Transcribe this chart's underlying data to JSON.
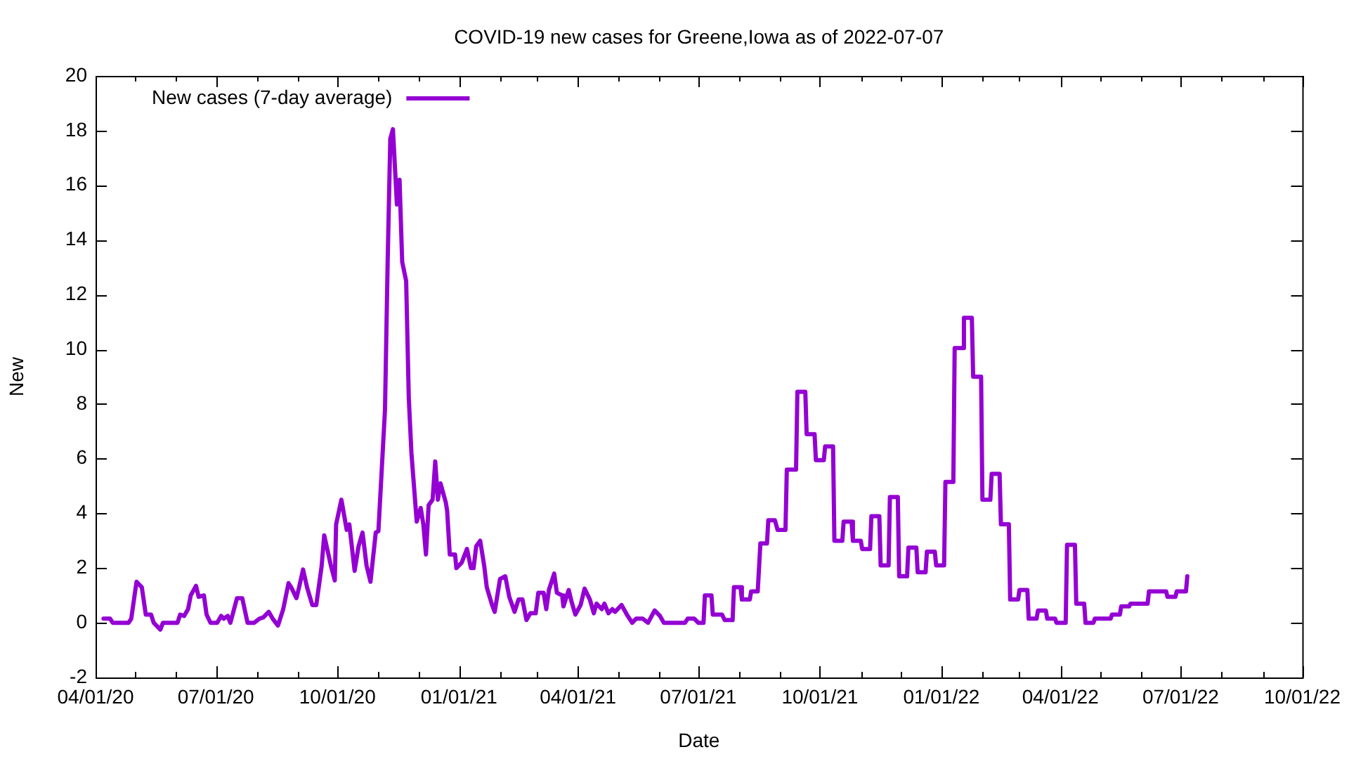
{
  "chart_data": {
    "type": "line",
    "title": "COVID-19 new cases for Greene,Iowa as of 2022-07-07",
    "xlabel": "Date",
    "ylabel": "New",
    "series": [
      {
        "name": "New cases (7-day average)",
        "color": "#9400d3",
        "x": [
          "2020-04-07",
          "2020-04-12",
          "2020-04-14",
          "2020-04-26",
          "2020-04-28",
          "2020-05-02",
          "2020-05-06",
          "2020-05-09",
          "2020-05-13",
          "2020-05-15",
          "2020-05-20",
          "2020-05-22",
          "2020-06-02",
          "2020-06-04",
          "2020-06-07",
          "2020-06-10",
          "2020-06-12",
          "2020-06-16",
          "2020-06-18",
          "2020-06-22",
          "2020-06-24",
          "2020-06-27",
          "2020-07-02",
          "2020-07-05",
          "2020-07-07",
          "2020-07-10",
          "2020-07-12",
          "2020-07-17",
          "2020-07-21",
          "2020-07-25",
          "2020-07-30",
          "2020-08-03",
          "2020-08-06",
          "2020-08-10",
          "2020-08-13",
          "2020-08-17",
          "2020-08-21",
          "2020-08-25",
          "2020-08-27",
          "2020-08-31",
          "2020-09-02",
          "2020-09-05",
          "2020-09-08",
          "2020-09-12",
          "2020-09-15",
          "2020-09-19",
          "2020-09-21",
          "2020-09-26",
          "2020-09-29",
          "2020-09-30",
          "2020-10-04",
          "2020-10-08",
          "2020-10-10",
          "2020-10-14",
          "2020-10-17",
          "2020-10-20",
          "2020-10-23",
          "2020-10-26",
          "2020-10-30",
          "2020-11-01",
          "2020-11-06",
          "2020-11-08",
          "2020-11-10",
          "2020-11-12",
          "2020-11-15",
          "2020-11-17",
          "2020-11-19",
          "2020-11-22",
          "2020-11-24",
          "2020-11-26",
          "2020-11-30",
          "2020-12-03",
          "2020-12-05",
          "2020-12-07",
          "2020-12-09",
          "2020-12-12",
          "2020-12-14",
          "2020-12-16",
          "2020-12-18",
          "2020-12-22",
          "2020-12-23",
          "2020-12-25",
          "2020-12-29",
          "2020-12-30",
          "2021-01-03",
          "2021-01-07",
          "2021-01-10",
          "2021-01-12",
          "2021-01-14",
          "2021-01-17",
          "2021-01-20",
          "2021-01-22",
          "2021-01-26",
          "2021-01-28",
          "2021-02-01",
          "2021-02-05",
          "2021-02-08",
          "2021-02-12",
          "2021-02-15",
          "2021-02-18",
          "2021-02-21",
          "2021-02-24",
          "2021-02-28",
          "2021-03-02",
          "2021-03-06",
          "2021-03-08",
          "2021-03-10",
          "2021-03-14",
          "2021-03-16",
          "2021-03-20",
          "2021-03-21",
          "2021-03-25",
          "2021-03-27",
          "2021-03-30",
          "2021-04-03",
          "2021-04-06",
          "2021-04-10",
          "2021-04-13",
          "2021-04-15",
          "2021-04-19",
          "2021-04-21",
          "2021-04-24",
          "2021-04-27",
          "2021-04-29",
          "2021-05-04",
          "2021-05-08",
          "2021-05-12",
          "2021-05-15",
          "2021-05-20",
          "2021-05-24",
          "2021-05-29",
          "2021-06-02",
          "2021-06-05",
          "2021-06-21",
          "2021-06-23",
          "2021-06-28",
          "2021-07-01",
          "2021-07-05",
          "2021-07-06",
          "2021-07-11",
          "2021-07-12",
          "2021-07-19",
          "2021-07-21",
          "2021-07-27",
          "2021-07-28",
          "2021-08-02",
          "2021-08-03",
          "2021-08-09",
          "2021-08-10",
          "2021-08-15",
          "2021-08-17",
          "2021-08-22",
          "2021-08-23",
          "2021-08-28",
          "2021-08-30",
          "2021-09-05",
          "2021-09-06",
          "2021-09-13",
          "2021-09-14",
          "2021-09-20",
          "2021-09-21",
          "2021-09-27",
          "2021-09-28",
          "2021-10-04",
          "2021-10-05",
          "2021-10-11",
          "2021-10-12",
          "2021-10-18",
          "2021-10-19",
          "2021-10-25",
          "2021-10-26",
          "2021-11-01",
          "2021-11-02",
          "2021-11-08",
          "2021-11-09",
          "2021-11-15",
          "2021-11-16",
          "2021-11-22",
          "2021-11-23",
          "2021-11-29",
          "2021-11-30",
          "2021-12-06",
          "2021-12-07",
          "2021-12-13",
          "2021-12-14",
          "2021-12-20",
          "2021-12-21",
          "2021-12-27",
          "2021-12-28",
          "2022-01-03",
          "2022-01-04",
          "2022-01-10",
          "2022-01-11",
          "2022-01-17",
          "2022-01-18",
          "2022-01-24",
          "2022-01-25",
          "2022-01-31",
          "2022-02-01",
          "2022-02-07",
          "2022-02-08",
          "2022-02-14",
          "2022-02-15",
          "2022-02-21",
          "2022-02-22",
          "2022-02-28",
          "2022-03-01",
          "2022-03-07",
          "2022-03-08",
          "2022-03-14",
          "2022-03-15",
          "2022-03-21",
          "2022-03-22",
          "2022-03-28",
          "2022-03-29",
          "2022-04-05",
          "2022-04-06",
          "2022-04-12",
          "2022-04-13",
          "2022-04-19",
          "2022-04-20",
          "2022-04-26",
          "2022-04-27",
          "2022-05-09",
          "2022-05-10",
          "2022-05-16",
          "2022-05-17",
          "2022-05-23",
          "2022-05-24",
          "2022-06-06",
          "2022-06-07",
          "2022-06-20",
          "2022-06-21",
          "2022-06-27",
          "2022-06-28",
          "2022-07-05",
          "2022-07-06"
        ],
        "values": [
          0.15,
          0.15,
          0,
          0,
          0.15,
          1.5,
          1.3,
          0.3,
          0.3,
          0,
          -0.25,
          0,
          0,
          0.3,
          0.25,
          0.5,
          1.0,
          1.35,
          0.95,
          1.0,
          0.3,
          0,
          0,
          0.25,
          0.15,
          0.25,
          0,
          0.9,
          0.9,
          0,
          0,
          0.15,
          0.2,
          0.4,
          0.15,
          -0.1,
          0.5,
          1.45,
          1.3,
          0.9,
          1.3,
          1.95,
          1.3,
          0.65,
          0.65,
          2.05,
          3.2,
          2.1,
          1.55,
          3.6,
          4.5,
          3.4,
          3.6,
          1.9,
          2.8,
          3.3,
          2.1,
          1.5,
          3.3,
          3.35,
          7.8,
          13.2,
          17.7,
          18.05,
          15.3,
          16.2,
          13.2,
          12.5,
          8.2,
          6.2,
          3.7,
          4.2,
          3.6,
          2.5,
          4.3,
          4.5,
          5.9,
          4.5,
          5.1,
          4.4,
          4.1,
          2.5,
          2.5,
          2.0,
          2.2,
          2.7,
          2.0,
          2.0,
          2.8,
          3.0,
          2.1,
          1.3,
          0.65,
          0.4,
          1.6,
          1.7,
          0.95,
          0.4,
          0.85,
          0.85,
          0.1,
          0.35,
          0.35,
          1.1,
          1.1,
          0.5,
          1.2,
          1.8,
          1.1,
          1.0,
          0.6,
          1.2,
          0.8,
          0.3,
          0.65,
          1.25,
          0.85,
          0.35,
          0.7,
          0.5,
          0.7,
          0.35,
          0.5,
          0.4,
          0.65,
          0.3,
          0,
          0.15,
          0.15,
          0,
          0.45,
          0.25,
          0,
          0,
          0.15,
          0.15,
          0,
          0,
          1.0,
          1.0,
          0.3,
          0.3,
          0.1,
          0.1,
          1.3,
          1.3,
          0.85,
          0.85,
          1.15,
          1.15,
          2.9,
          2.9,
          3.75,
          3.75,
          3.4,
          3.4,
          5.6,
          5.6,
          8.45,
          8.45,
          6.9,
          6.9,
          5.95,
          5.95,
          6.45,
          6.45,
          3.0,
          3.0,
          3.7,
          3.7,
          3.0,
          3.0,
          2.7,
          2.7,
          3.9,
          3.9,
          2.1,
          2.1,
          4.6,
          4.6,
          1.7,
          1.7,
          2.75,
          2.75,
          1.85,
          1.85,
          2.6,
          2.6,
          2.1,
          2.1,
          5.15,
          5.15,
          10.05,
          10.05,
          11.15,
          11.15,
          9.0,
          9.0,
          4.5,
          4.5,
          5.45,
          5.45,
          3.6,
          3.6,
          0.85,
          0.85,
          1.2,
          1.2,
          0.15,
          0.15,
          0.45,
          0.45,
          0.15,
          0.15,
          0,
          0,
          2.85,
          2.85,
          0.7,
          0.7,
          0,
          0,
          0.15,
          0.15,
          0.3,
          0.3,
          0.6,
          0.6,
          0.7,
          0.7,
          1.15,
          1.15,
          0.95,
          0.95,
          1.15,
          1.15,
          1.7
        ]
      }
    ],
    "xlim": [
      "2020-04-01",
      "2022-10-01"
    ],
    "xticks": [
      {
        "value": "2020-04-01",
        "label": "04/01/20"
      },
      {
        "value": "2020-05-01",
        "label": null
      },
      {
        "value": "2020-06-01",
        "label": null
      },
      {
        "value": "2020-07-01",
        "label": "07/01/20"
      },
      {
        "value": "2020-08-01",
        "label": null
      },
      {
        "value": "2020-09-01",
        "label": null
      },
      {
        "value": "2020-10-01",
        "label": "10/01/20"
      },
      {
        "value": "2020-11-01",
        "label": null
      },
      {
        "value": "2020-12-01",
        "label": null
      },
      {
        "value": "2021-01-01",
        "label": "01/01/21"
      },
      {
        "value": "2021-02-01",
        "label": null
      },
      {
        "value": "2021-03-01",
        "label": null
      },
      {
        "value": "2021-04-01",
        "label": "04/01/21"
      },
      {
        "value": "2021-05-01",
        "label": null
      },
      {
        "value": "2021-06-01",
        "label": null
      },
      {
        "value": "2021-07-01",
        "label": "07/01/21"
      },
      {
        "value": "2021-08-01",
        "label": null
      },
      {
        "value": "2021-09-01",
        "label": null
      },
      {
        "value": "2021-10-01",
        "label": "10/01/21"
      },
      {
        "value": "2021-11-01",
        "label": null
      },
      {
        "value": "2021-12-01",
        "label": null
      },
      {
        "value": "2022-01-01",
        "label": "01/01/22"
      },
      {
        "value": "2022-02-01",
        "label": null
      },
      {
        "value": "2022-03-01",
        "label": null
      },
      {
        "value": "2022-04-01",
        "label": "04/01/22"
      },
      {
        "value": "2022-05-01",
        "label": null
      },
      {
        "value": "2022-06-01",
        "label": null
      },
      {
        "value": "2022-07-01",
        "label": "07/01/22"
      },
      {
        "value": "2022-08-01",
        "label": null
      },
      {
        "value": "2022-09-01",
        "label": null
      },
      {
        "value": "2022-10-01",
        "label": "10/01/22"
      }
    ],
    "ylim": [
      -2,
      20
    ],
    "yticks": [
      -2,
      0,
      2,
      4,
      6,
      8,
      10,
      12,
      14,
      16,
      18,
      20
    ],
    "grid": false,
    "legend": "top left",
    "marker": "none",
    "line_style": "solid"
  }
}
